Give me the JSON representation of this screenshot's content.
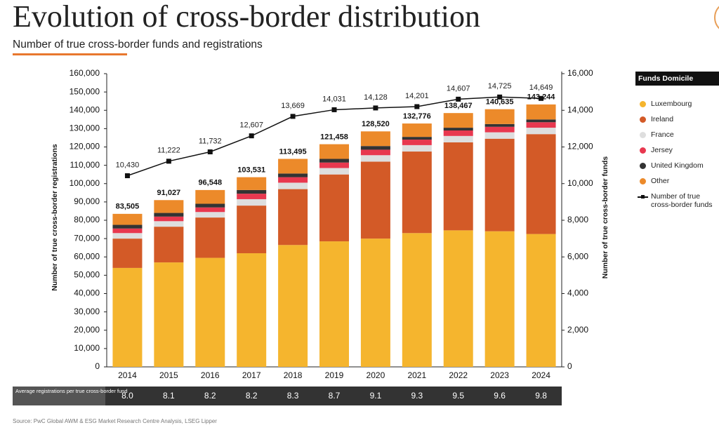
{
  "chart_data": {
    "type": "stacked_bar",
    "title": "Evolution of cross-border distribution",
    "subtitle": "Number of true cross-border funds and registrations",
    "y_label": "Number of true cross-border registrations",
    "y2_label": "Number of true cross-border funds",
    "legend_title": "Funds Domicile",
    "categories": [
      "2014",
      "2015",
      "2016",
      "2017",
      "2018",
      "2019",
      "2020",
      "2021",
      "2022",
      "2023",
      "2024"
    ],
    "series": [
      {
        "name": "Luxembourg",
        "color": "#f5b52e",
        "values": [
          54000,
          57000,
          59500,
          62000,
          66500,
          68500,
          70000,
          73000,
          74500,
          74000,
          72500
        ]
      },
      {
        "name": "Ireland",
        "color": "#d35a27",
        "values": [
          16000,
          19500,
          22000,
          26000,
          30500,
          36500,
          42000,
          44500,
          48000,
          50500,
          54500
        ]
      },
      {
        "name": "France",
        "color": "#dedede",
        "values": [
          3000,
          3000,
          3000,
          3500,
          3500,
          3500,
          3500,
          3500,
          3500,
          3500,
          3500
        ]
      },
      {
        "name": "Jersey",
        "color": "#e8384f",
        "values": [
          2500,
          2500,
          2500,
          3000,
          3000,
          3000,
          3000,
          3000,
          3000,
          3000,
          3000
        ]
      },
      {
        "name": "United Kingdom",
        "color": "#333333",
        "values": [
          2000,
          2000,
          2000,
          2000,
          2000,
          2000,
          2000,
          1500,
          1500,
          1500,
          1500
        ]
      },
      {
        "name": "Other",
        "color": "#ec8a2a",
        "values": [
          6000,
          7000,
          7500,
          7000,
          8000,
          8000,
          8000,
          7300,
          8000,
          8100,
          8200
        ]
      }
    ],
    "totals": {
      "values": [
        83505,
        91027,
        96548,
        103531,
        113495,
        121458,
        128520,
        132776,
        138467,
        140635,
        143244
      ],
      "value_labels": [
        "83,505",
        "91,027",
        "96,548",
        "103,531",
        "113,495",
        "121,458",
        "128,520",
        "132,776",
        "138,467",
        "140,635",
        "143,244"
      ]
    },
    "line": {
      "name": "Number of true cross-border funds",
      "color": "#111111",
      "axis": "y2",
      "values": [
        10430,
        11222,
        11732,
        12607,
        13669,
        14031,
        14128,
        14201,
        14607,
        14725,
        14649
      ],
      "value_labels": [
        "10,430",
        "11,222",
        "11,732",
        "12,607",
        "13,669",
        "14,031",
        "14,128",
        "14,201",
        "14,607",
        "14,725",
        "14,649"
      ]
    },
    "ylim": [
      0,
      160000
    ],
    "yticks": [
      0,
      {
        "value": 10000,
        "label": "10,000"
      },
      {
        "value": 20000,
        "label": "20,000"
      },
      {
        "value": 30000,
        "label": "30,000"
      },
      {
        "value": 40000,
        "label": "40,000"
      },
      {
        "value": 50000,
        "label": "50,000"
      },
      {
        "value": 60000,
        "label": "60,000"
      },
      {
        "value": 70000,
        "label": "70,000"
      },
      {
        "value": 80000,
        "label": "80,000"
      },
      {
        "value": 90000,
        "label": "90,000"
      },
      {
        "value": 100000,
        "label": "100,000"
      },
      {
        "value": 110000,
        "label": "110,000"
      },
      {
        "value": 120000,
        "label": "120,000"
      },
      {
        "value": 130000,
        "label": "130,000"
      },
      {
        "value": 140000,
        "label": "140,000"
      },
      {
        "value": 150000,
        "label": "150,000"
      },
      {
        "value": 160000,
        "label": "160,000"
      }
    ],
    "y2lim": [
      0,
      16000
    ],
    "y2ticks": [
      0,
      {
        "value": 2000,
        "label": "2,000"
      },
      {
        "value": 4000,
        "label": "4,000"
      },
      {
        "value": 6000,
        "label": "6,000"
      },
      {
        "value": 8000,
        "label": "8,000"
      },
      {
        "value": 10000,
        "label": "10,000"
      },
      {
        "value": 12000,
        "label": "12,000"
      },
      {
        "value": 14000,
        "label": "14,000"
      },
      {
        "value": 16000,
        "label": "16,000"
      }
    ],
    "grid": false,
    "legend": "right"
  },
  "table": {
    "label": "Average registrations per true cross-border fund",
    "values": [
      "8.0",
      "8.1",
      "8.2",
      "8.2",
      "8.3",
      "8.7",
      "9.1",
      "9.3",
      "9.5",
      "9.6",
      "9.8"
    ]
  },
  "source": "Source: PwC Global AWM & ESG Market Research Centre Analysis, LSEG Lipper"
}
